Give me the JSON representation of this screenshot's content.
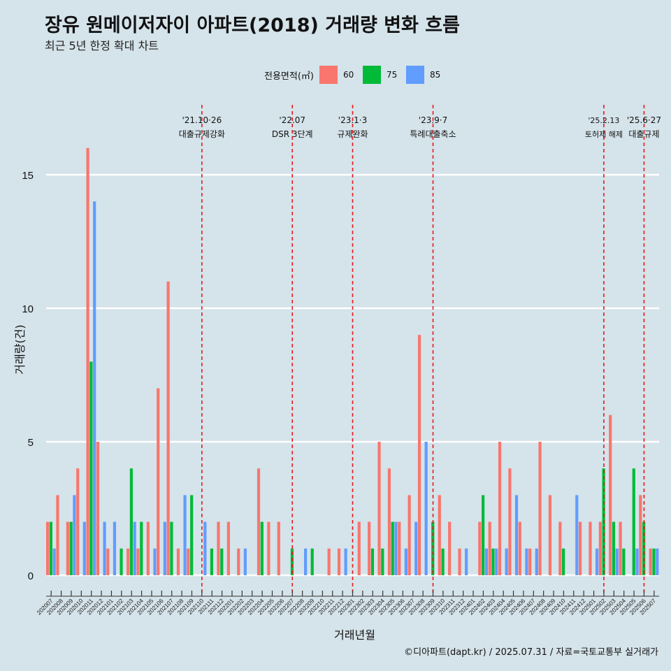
{
  "title": "장유 원메이저자이 아파트(2018) 거래량 변화 흐름",
  "subtitle": "최근 5년 한정 확대 차트",
  "caption": "©디아파트(dapt.kr) / 2025.07.31 / 자료=국토교통부 실거래가",
  "legend": {
    "title": "전용면적(㎡)",
    "items": [
      {
        "label": "60",
        "color": "#f8766d"
      },
      {
        "label": "75",
        "color": "#00ba38"
      },
      {
        "label": "85",
        "color": "#619cff"
      }
    ]
  },
  "chart_data": {
    "type": "bar",
    "xlabel": "거래년월",
    "ylabel": "거래량(건)",
    "ylim": [
      0,
      17
    ],
    "yticks": [
      0,
      5,
      10,
      15
    ],
    "grid": true,
    "categories": [
      "202007",
      "202008",
      "202009",
      "202010",
      "202011",
      "202012",
      "202101",
      "202102",
      "202103",
      "202104",
      "202105",
      "202106",
      "202107",
      "202108",
      "202109",
      "202110",
      "202111",
      "202112",
      "202201",
      "202202",
      "202203",
      "202204",
      "202205",
      "202206",
      "202207",
      "202208",
      "202209",
      "202210",
      "202211",
      "202212",
      "202301",
      "202302",
      "202303",
      "202304",
      "202305",
      "202306",
      "202307",
      "202308",
      "202309",
      "202310",
      "202311",
      "202312",
      "202401",
      "202402",
      "202403",
      "202404",
      "202405",
      "202406",
      "202407",
      "202408",
      "202409",
      "202410",
      "202411",
      "202412",
      "202501",
      "202502",
      "202503",
      "202504",
      "202505",
      "202506",
      "202507"
    ],
    "series": [
      {
        "name": "60",
        "color": "#f8766d",
        "values": [
          2,
          3,
          2,
          4,
          16,
          5,
          1,
          0,
          1,
          1,
          2,
          7,
          11,
          1,
          1,
          0,
          0,
          2,
          2,
          1,
          0,
          4,
          2,
          2,
          0,
          0,
          0,
          0,
          1,
          1,
          0,
          2,
          2,
          5,
          4,
          2,
          3,
          9,
          0,
          3,
          2,
          1,
          0,
          2,
          2,
          5,
          4,
          2,
          1,
          5,
          3,
          2,
          0,
          2,
          2,
          2,
          6,
          2,
          0,
          3,
          1
        ]
      },
      {
        "name": "75",
        "color": "#00ba38",
        "values": [
          2,
          0,
          2,
          0,
          8,
          0,
          0,
          1,
          4,
          2,
          0,
          0,
          2,
          0,
          3,
          0,
          1,
          1,
          0,
          0,
          0,
          2,
          0,
          0,
          1,
          0,
          1,
          0,
          0,
          0,
          0,
          0,
          1,
          1,
          2,
          0,
          0,
          0,
          2,
          1,
          0,
          0,
          0,
          3,
          1,
          0,
          0,
          0,
          0,
          0,
          0,
          1,
          0,
          0,
          0,
          4,
          2,
          1,
          4,
          2,
          1
        ]
      },
      {
        "name": "85",
        "color": "#619cff",
        "values": [
          1,
          0,
          3,
          2,
          14,
          2,
          2,
          0,
          2,
          0,
          1,
          2,
          0,
          3,
          0,
          2,
          0,
          0,
          0,
          1,
          0,
          0,
          0,
          0,
          0,
          1,
          0,
          0,
          0,
          1,
          0,
          0,
          0,
          0,
          2,
          1,
          2,
          5,
          0,
          0,
          0,
          1,
          0,
          1,
          1,
          1,
          3,
          1,
          1,
          0,
          0,
          0,
          3,
          0,
          1,
          0,
          1,
          0,
          1,
          0,
          1
        ]
      }
    ],
    "events": [
      {
        "at": "202110",
        "label_line1": "'21.10·26",
        "label_line2": "대출규제강화"
      },
      {
        "at": "202207",
        "label_line1": "'22.07",
        "label_line2": "DSR 3단계"
      },
      {
        "at": "202301",
        "label_line1": "'23.1·3",
        "label_line2": "규제완화"
      },
      {
        "at": "202309",
        "label_line1": "'23.9·7",
        "label_line2": "특례대출축소"
      },
      {
        "at": "202502",
        "label_line1": "'25.2.13",
        "label_line2": "토허제 해제"
      },
      {
        "at": "202506",
        "label_line1": "'25.6·27",
        "label_line2": "대출규제"
      }
    ]
  }
}
